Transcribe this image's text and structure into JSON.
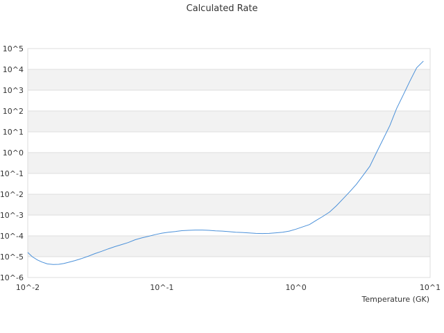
{
  "chart_data": {
    "type": "line",
    "title": "Calculated Rate",
    "xlabel": "Temperature (GK)",
    "ylabel": "",
    "xscale": "log",
    "yscale": "log",
    "xlim": [
      0.01,
      10
    ],
    "ylim": [
      1e-06,
      100000.0
    ],
    "x_ticks": [
      "10^-2",
      "10^-1",
      "10^0",
      "10^1"
    ],
    "y_ticks": [
      "10^5",
      "10^4",
      "10^3",
      "10^2",
      "10^1",
      "10^0",
      "10^-1",
      "10^-2",
      "10^-3",
      "10^-4",
      "10^-5",
      "10^-6"
    ],
    "grid": "alternating horizontal bands",
    "legend": "none",
    "series": [
      {
        "color": "#4a90d9",
        "x": [
          0.01,
          0.0108,
          0.0118,
          0.0128,
          0.014,
          0.0155,
          0.017,
          0.0185,
          0.02,
          0.0225,
          0.025,
          0.0282,
          0.0316,
          0.0355,
          0.04,
          0.045,
          0.05,
          0.0562,
          0.0631,
          0.0708,
          0.0794,
          0.0891,
          0.1,
          0.112,
          0.126,
          0.141,
          0.158,
          0.178,
          0.2,
          0.224,
          0.251,
          0.282,
          0.316,
          0.355,
          0.398,
          0.447,
          0.501,
          0.562,
          0.631,
          0.708,
          0.794,
          0.891,
          1.0,
          1.12,
          1.26,
          1.41,
          1.58,
          1.78,
          2.0,
          2.24,
          2.51,
          2.82,
          3.16,
          3.55,
          3.98,
          4.47,
          5.01,
          5.62,
          6.31,
          7.08,
          7.94,
          8.91
        ],
        "y": [
          1.6e-05,
          1e-05,
          7e-06,
          5.5e-06,
          4.5e-06,
          4.2e-06,
          4.3e-06,
          4.7e-06,
          5.3e-06,
          6.5e-06,
          8e-06,
          1.05e-05,
          1.4e-05,
          1.8e-05,
          2.4e-05,
          3.1e-05,
          3.8e-05,
          4.8e-05,
          6.5e-05,
          8e-05,
          9.5e-05,
          0.000115,
          0.000135,
          0.00015,
          0.000162,
          0.000178,
          0.000185,
          0.00019,
          0.00019,
          0.000185,
          0.000175,
          0.00017,
          0.00016,
          0.00015,
          0.000145,
          0.000138,
          0.000132,
          0.00013,
          0.000132,
          0.00014,
          0.00015,
          0.00017,
          0.00021,
          0.00027,
          0.00035,
          0.00055,
          0.00085,
          0.0014,
          0.0028,
          0.006,
          0.013,
          0.03,
          0.08,
          0.22,
          1.0,
          4.5,
          20,
          130,
          600,
          2800,
          12000,
          25000
        ]
      }
    ]
  }
}
